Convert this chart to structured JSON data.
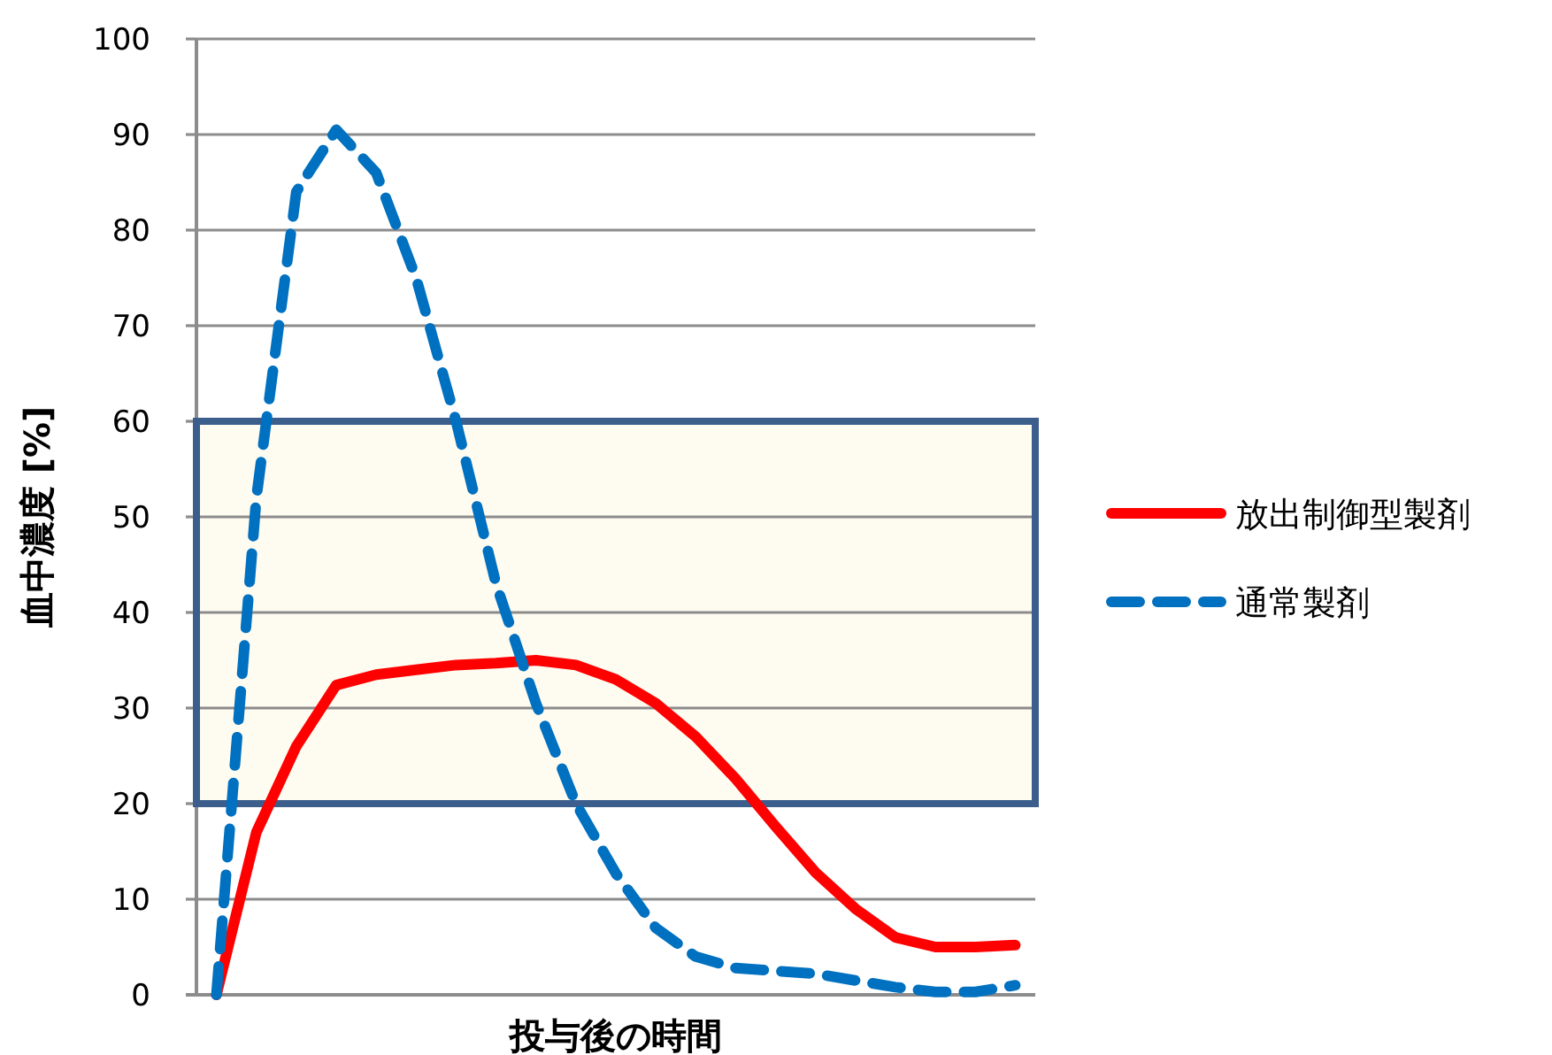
{
  "chart_data": {
    "type": "line",
    "xlabel": "投与後の時間",
    "ylabel": "血中濃度 [%]",
    "categories": [
      null,
      null,
      null,
      null,
      null,
      null,
      null,
      null,
      null,
      null,
      null,
      null,
      null,
      null,
      null,
      null,
      null,
      null,
      null,
      null,
      null
    ],
    "series": [
      {
        "name": "放出制御型製剤",
        "color": "#ff0000",
        "line_style": "solid",
        "values": [
          0,
          17,
          26,
          32.4,
          33.5,
          34,
          34.5,
          34.7,
          35,
          34.5,
          33,
          30.5,
          27,
          22.6,
          17.6,
          12.8,
          9,
          6,
          5,
          5,
          5.2
        ]
      },
      {
        "name": "通常製剤",
        "color": "#0070c0",
        "line_style": "dashed",
        "values": [
          0,
          52,
          84,
          90.5,
          86,
          75,
          60,
          43,
          30.5,
          20,
          12.7,
          7,
          4,
          2.8,
          2.5,
          2.2,
          1.5,
          0.8,
          0.3,
          0.3,
          1
        ]
      }
    ],
    "ylim": [
      0,
      100
    ],
    "yticks": [
      0,
      10,
      20,
      30,
      40,
      50,
      60,
      70,
      80,
      90,
      100
    ],
    "bands": [
      {
        "axis": "y",
        "from": 20,
        "to": 60,
        "color": "#fefbf0"
      }
    ],
    "grid": "y",
    "legend": "right",
    "tick_labels": "y"
  }
}
